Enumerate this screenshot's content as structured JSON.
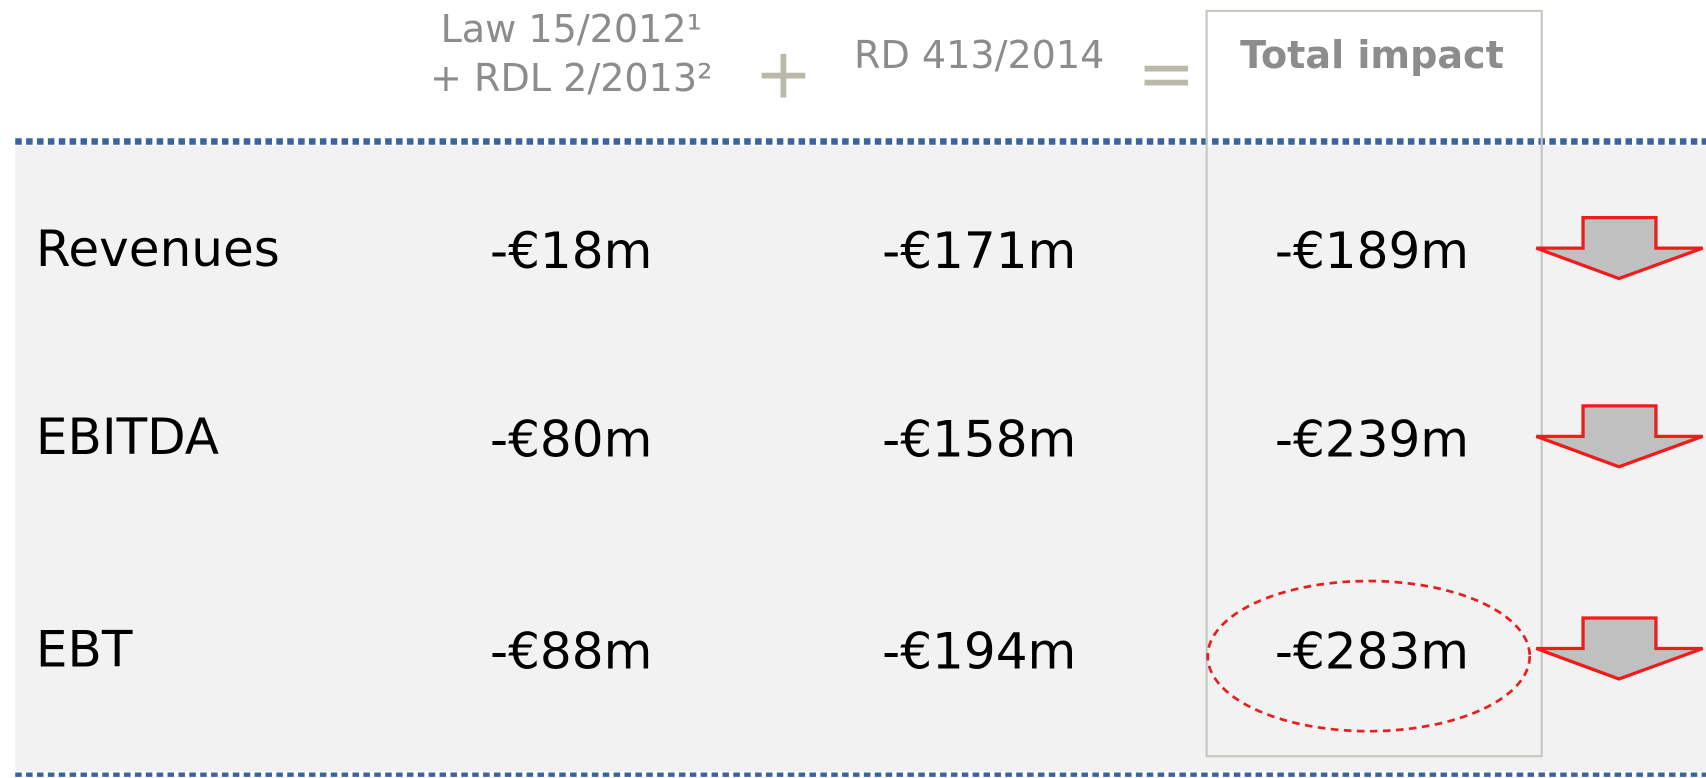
{
  "header": {
    "law": [
      "Law 15/2012¹",
      "+ RDL 2/2013²"
    ],
    "plus": "+",
    "rd": "RD 413/2014",
    "equals": "=",
    "total": "Total impact"
  },
  "rows": [
    {
      "label": "Revenues",
      "values": [
        "-€18m",
        "-€171m",
        "-€189m"
      ]
    },
    {
      "label": "EBITDA",
      "values": [
        "-€80m",
        "-€158m",
        "-€239m"
      ]
    },
    {
      "label": "EBT",
      "values": [
        "-€88m",
        "-€194m",
        "-€283m"
      ]
    }
  ]
}
